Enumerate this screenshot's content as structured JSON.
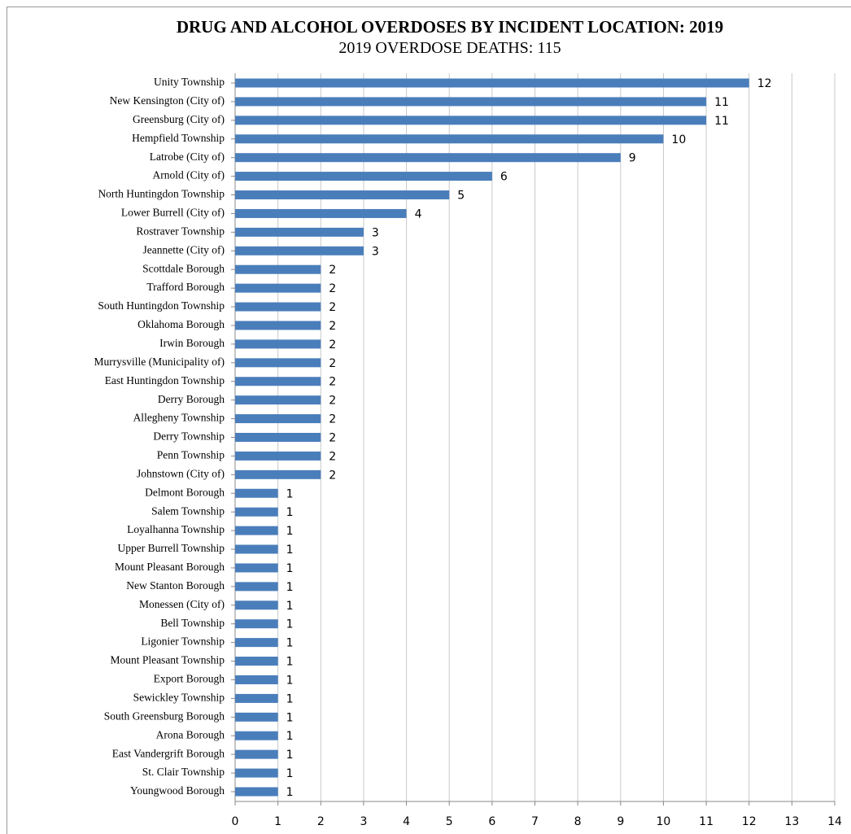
{
  "chart_data": {
    "type": "bar",
    "orientation": "horizontal",
    "title": "DRUG AND ALCOHOL OVERDOSES BY INCIDENT LOCATION: 2019",
    "subtitle": "2019 OVERDOSE DEATHS: 115",
    "categories": [
      "Unity Township",
      "New Kensington (City of)",
      "Greensburg (City of)",
      "Hempfield Township",
      "Latrobe (City of)",
      "Arnold (City of)",
      "North Huntingdon Township",
      "Lower Burrell (City of)",
      "Rostraver Township",
      "Jeannette (City of)",
      "Scottdale Borough",
      "Trafford Borough",
      "South Huntingdon Township",
      "Oklahoma Borough",
      "Irwin Borough",
      "Murrysville (Municipality of)",
      "East Huntingdon Township",
      "Derry Borough",
      "Allegheny Township",
      "Derry Township",
      "Penn Township",
      "Johnstown (City of)",
      "Delmont Borough",
      "Salem Township",
      "Loyalhanna Township",
      "Upper Burrell Township",
      "Mount Pleasant Borough",
      "New Stanton Borough",
      "Monessen (City of)",
      "Bell Township",
      "Ligonier Township",
      "Mount Pleasant Township",
      "Export Borough",
      "Sewickley Township",
      "South Greensburg Borough",
      "Arona Borough",
      "East Vandergrift Borough",
      "St. Clair Township",
      "Youngwood Borough"
    ],
    "values": [
      12,
      11,
      11,
      10,
      9,
      6,
      5,
      4,
      3,
      3,
      2,
      2,
      2,
      2,
      2,
      2,
      2,
      2,
      2,
      2,
      2,
      2,
      1,
      1,
      1,
      1,
      1,
      1,
      1,
      1,
      1,
      1,
      1,
      1,
      1,
      1,
      1,
      1,
      1
    ],
    "color": "#4a7ebb",
    "xlim": [
      0,
      14
    ],
    "xticks": [
      0,
      1,
      2,
      3,
      4,
      5,
      6,
      7,
      8,
      9,
      10,
      11,
      12,
      13,
      14
    ],
    "grid": true
  }
}
